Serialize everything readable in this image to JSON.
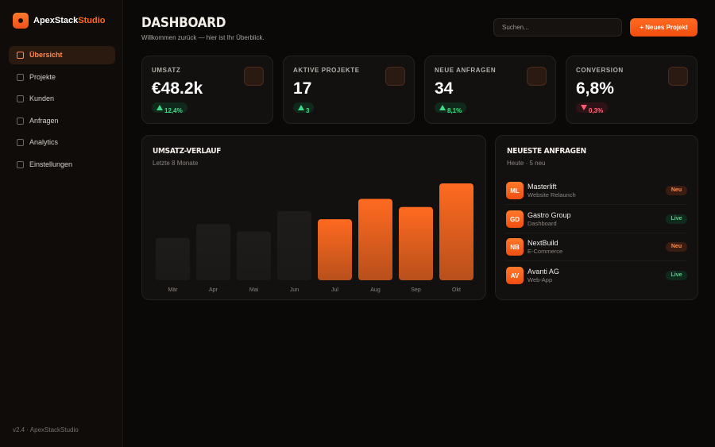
{
  "sidebar": {
    "brand": {
      "name": "ApexStack",
      "accent": "Studio"
    },
    "nav": [
      "Übersicht",
      "Projekte",
      "Kunden",
      "Anfragen",
      "Analytics",
      "Einstellungen"
    ],
    "active": 0,
    "footer": "v2.4 · ApexStackStudio"
  },
  "header": {
    "title": "DASHBOARD",
    "subtitle": "Willkommen zurück — hier ist Ihr Überblick.",
    "search_placeholder": "Suchen...",
    "button": "+ Neues Projekt"
  },
  "kpis": [
    {
      "label": "UMSATZ",
      "value": "€48.2k",
      "change": "12,4%",
      "trend": "up"
    },
    {
      "label": "AKTIVE PROJEKTE",
      "value": "17",
      "change": "3",
      "trend": "up"
    },
    {
      "label": "NEUE ANFRAGEN",
      "value": "34",
      "change": "8,1%",
      "trend": "up"
    },
    {
      "label": "CONVERSION",
      "value": "6,8%",
      "change": "0,3%",
      "trend": "down"
    }
  ],
  "chart_data": {
    "type": "bar",
    "title": "UMSATZ-VERLAUF",
    "subtitle": "Letzte 8 Monate",
    "categories": [
      "Mär",
      "Apr",
      "Mai",
      "Jun",
      "Jul",
      "Aug",
      "Sep",
      "Okt"
    ],
    "values": [
      52,
      69,
      60,
      85,
      75,
      100,
      90,
      119
    ],
    "colors": [
      "#1e1c1b",
      "#1e1c1b",
      "#1e1c1b",
      "#1e1c1b",
      "#ff6a20",
      "#ff6a20",
      "#ff6a20",
      "#ff6a20"
    ]
  },
  "requests": {
    "title": "NEUESTE ANFRAGEN",
    "subtitle": "Heute · 5 neu",
    "items": [
      {
        "initials": "ML",
        "name": "Masterlift",
        "project": "Website Relaunch",
        "status": "Neu"
      },
      {
        "initials": "GD",
        "name": "Gastro Group",
        "project": "Dashboard",
        "status": "Live"
      },
      {
        "initials": "NB",
        "name": "NextBuild",
        "project": "E-Commerce",
        "status": "Neu"
      },
      {
        "initials": "AV",
        "name": "Avanti AG",
        "project": "Web-App",
        "status": "Live"
      }
    ]
  }
}
